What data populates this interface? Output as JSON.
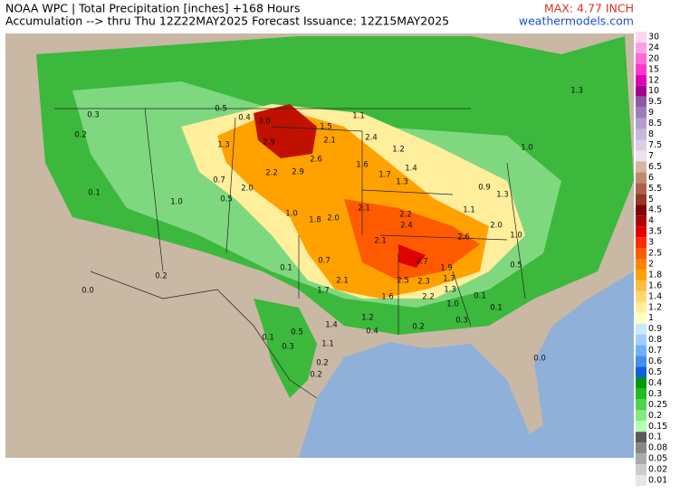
{
  "header": {
    "title": "NOAA WPC | Total Precipitation [inches] +168 Hours",
    "subtitle": "Accumulation --> thru Thu 12Z22MAY2025   Forecast Issuance: 12Z15MAY2025",
    "max_label": "MAX: 4.77 INCH",
    "site": "weathermodels.com"
  },
  "colorbar": {
    "ticks": [
      30,
      24,
      20,
      15,
      12,
      10,
      9.5,
      9,
      8.5,
      8,
      7.5,
      7,
      6.5,
      6,
      5.5,
      5,
      4.5,
      4,
      3.5,
      3,
      2.5,
      2,
      1.8,
      1.6,
      1.4,
      1.2,
      1,
      0.9,
      0.8,
      0.7,
      0.6,
      0.5,
      0.4,
      0.3,
      0.25,
      0.2,
      0.15,
      0.1,
      0.08,
      0.05,
      0.02,
      0.01
    ],
    "colors": [
      "#ffd6f2",
      "#ff9fe6",
      "#ff6ad2",
      "#ff38c8",
      "#e000b4",
      "#a0008c",
      "#8a5aa8",
      "#9c7cba",
      "#b29ecd",
      "#c6b8da",
      "#d9cee6",
      "#ebe3ef",
      "#d8b4a6",
      "#c08a72",
      "#a8624a",
      "#903a22",
      "#800000",
      "#b00000",
      "#e00000",
      "#ff2a00",
      "#ff5a00",
      "#ff8200",
      "#ffa200",
      "#ffbe40",
      "#ffd870",
      "#ffee9c",
      "#ffffc4",
      "#c8e8ff",
      "#a0d0ff",
      "#70b0f8",
      "#4090f0",
      "#1060d8",
      "#009a00",
      "#20bc20",
      "#50d450",
      "#80ec80",
      "#b4ffb4",
      "#5a5a5a",
      "#868686",
      "#aaaaaa",
      "#cccccc",
      "#e6e6e6"
    ]
  },
  "map_labels": [
    "3.0",
    "2.9",
    "2.9",
    "2.6",
    "2.2",
    "1.3",
    "1.5",
    "2.1",
    "2.0",
    "1.0",
    "1.8",
    "2.0",
    "2.1",
    "2.2",
    "2.4",
    "2.1",
    "2.7",
    "2.6",
    "1.9",
    "1.7",
    "1.3",
    "2.5",
    "2.3",
    "2.2",
    "1.6",
    "2.1",
    "1.7",
    "1.4",
    "1.2",
    "0.7",
    "0.1",
    "0.2",
    "0.0",
    "0.1",
    "0.3",
    "0.5",
    "1.1",
    "0.2",
    "0.2",
    "0.4",
    "0.2",
    "0.3",
    "1.0",
    "0.0",
    "1.2",
    "2.4",
    "1.4",
    "1.6",
    "1.7",
    "1.3",
    "1.1",
    "0.4",
    "0.5",
    "0.7",
    "0.5",
    "1.0",
    "0.3",
    "0.2",
    "0.1",
    "1.3",
    "1.0",
    "1.1",
    "2.0",
    "1.0",
    "0.9",
    "1.3",
    "0.5",
    "0.1",
    "0.1"
  ]
}
